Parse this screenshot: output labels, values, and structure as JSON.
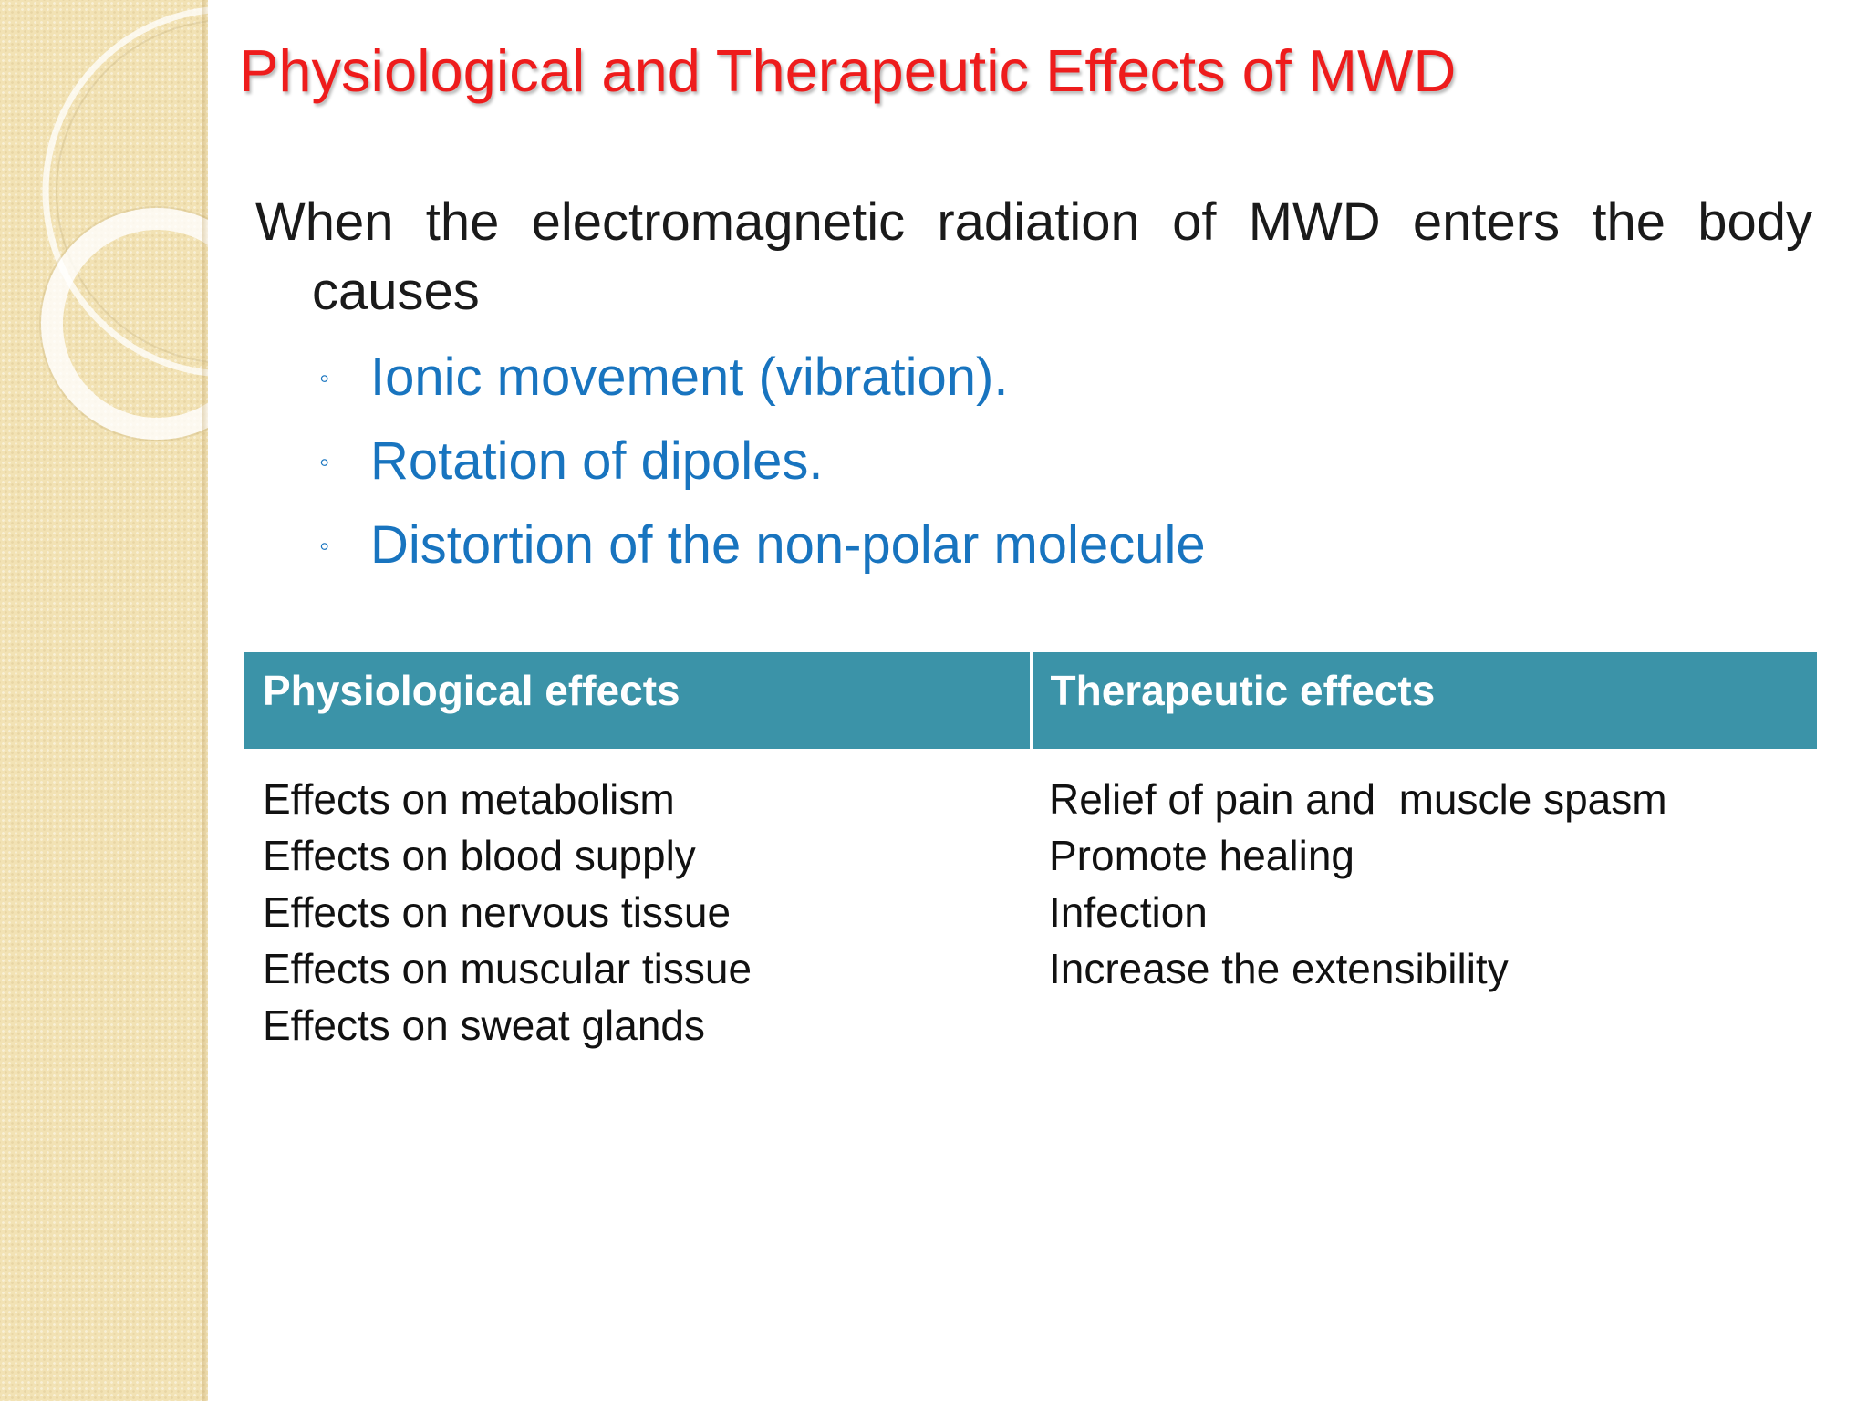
{
  "title": "Physiological and Therapeutic Effects of MWD",
  "intro": "When the electromagnetic radiation of MWD enters the body causes",
  "bullet_symbol": "◦",
  "bullets": [
    "Ionic movement (vibration).",
    "Rotation of dipoles.",
    "Distortion of the non-polar molecule"
  ],
  "table": {
    "headers": [
      "Physiological effects",
      "Therapeutic effects"
    ],
    "physiological": [
      "Effects on metabolism",
      "Effects on blood supply",
      "Effects on nervous tissue",
      "Effects on muscular tissue",
      "Effects on sweat glands"
    ],
    "therapeutic": [
      "Relief of pain and  muscle spasm",
      "Promote healing",
      "Infection",
      "Increase the extensibility"
    ]
  },
  "colors": {
    "title": "#ee1c1c",
    "bullet_text": "#1874bf",
    "table_header": "#3b93a8",
    "side_panel": "#f2e2b4"
  }
}
